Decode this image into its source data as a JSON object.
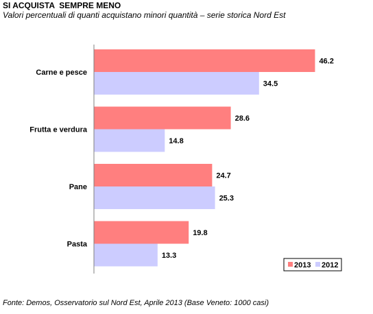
{
  "header": {
    "title": "SI ACQUISTA  SEMPRE MENO",
    "subtitle": "Valori percentuali di quanti acquistano minori quantità – serie storica Nord Est"
  },
  "footer": {
    "source": "Fonte: Demos, Osservatorio sul Nord Est, Aprile 2013 (Base Veneto: 1000 casi)"
  },
  "chart_data": {
    "type": "bar",
    "orientation": "horizontal",
    "categories": [
      "Carne e pesce",
      "Frutta e verdura",
      "Pane",
      "Pasta"
    ],
    "series": [
      {
        "name": "2013",
        "values": [
          46.2,
          28.6,
          24.7,
          19.8
        ],
        "color": "#ff7f7f"
      },
      {
        "name": "2012",
        "values": [
          34.5,
          14.8,
          25.3,
          13.3
        ],
        "color": "#ccccff"
      }
    ],
    "xlim": [
      0,
      48
    ],
    "grid": false,
    "legend_position": "bottom-right"
  }
}
